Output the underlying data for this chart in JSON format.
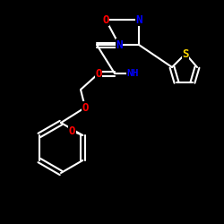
{
  "background": "#000000",
  "bond_color": "#FFFFFF",
  "atom_colors": {
    "O": "#FF0000",
    "N": "#0000FF",
    "S": "#FFD700",
    "C": "#FFFFFF",
    "H": "#FFFFFF"
  },
  "bond_width": 1.5,
  "font_size": 9,
  "font_size_small": 8
}
